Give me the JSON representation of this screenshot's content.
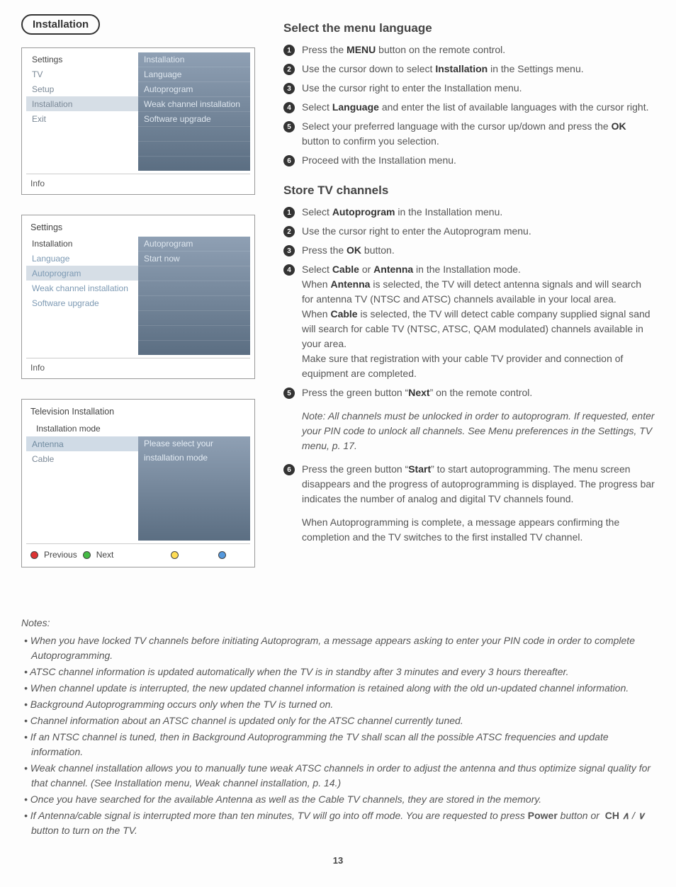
{
  "page_number": "13",
  "tag_label": "Installation",
  "colors": {
    "gradient_top": "#8fa0b4",
    "gradient_bottom": "#5b6e82",
    "text_body": "#555555",
    "text_heading": "#444444",
    "badge_bg": "#333333",
    "dot_red": "#dd3333",
    "dot_green": "#44bb44",
    "dot_yellow": "#ffdd55",
    "dot_blue": "#5599dd"
  },
  "menu1": {
    "left_header": "Settings",
    "right_header": "Installation",
    "left_items": [
      "TV",
      "Setup",
      "Installation",
      "Exit"
    ],
    "left_selected_index": 2,
    "right_items": [
      "Language",
      "Autoprogram",
      "Weak channel installation",
      "Software upgrade"
    ],
    "footer": "Info"
  },
  "menu2": {
    "title": "Settings",
    "left_header": "Installation",
    "right_header": "Autoprogram",
    "left_items": [
      "Language",
      "Autoprogram",
      "Weak channel installation",
      "Software upgrade"
    ],
    "left_selected_index": 1,
    "right_items": [
      "Start now"
    ],
    "footer": "Info"
  },
  "menu3": {
    "title": "Television Installation",
    "subhead": "Installation mode",
    "left_items": [
      "Antenna",
      "Cable"
    ],
    "left_selected_index": 0,
    "right_msg1": "Please select your",
    "right_msg2": "installation mode",
    "buttons": {
      "prev": "Previous",
      "next": "Next"
    }
  },
  "section1": {
    "heading": "Select the menu language",
    "steps": [
      {
        "n": "1",
        "html": "Press the <b>MENU</b> button on the remote control."
      },
      {
        "n": "2",
        "html": "Use the cursor down to select <b>Installation</b> in the Settings menu."
      },
      {
        "n": "3",
        "html": "Use the cursor right to enter the Installation menu."
      },
      {
        "n": "4",
        "html": "Select <b>Language</b> and enter the list of available languages with the cursor right."
      },
      {
        "n": "5",
        "html": "Select your preferred language with the cursor up/down and press the <b>OK</b> button to confirm you selection."
      },
      {
        "n": "6",
        "html": "Proceed with the Installation menu."
      }
    ]
  },
  "section2": {
    "heading": "Store TV channels",
    "steps": [
      {
        "n": "1",
        "html": "Select <b>Autoprogram</b> in the Installation menu."
      },
      {
        "n": "2",
        "html": "Use the cursor right to enter the Autoprogram menu."
      },
      {
        "n": "3",
        "html": "Press the <b>OK</b> button."
      },
      {
        "n": "4",
        "html": "Select <b>Cable</b> or <b>Antenna</b> in the Installation mode.<br>When <b>Antenna</b> is selected, the TV will detect antenna signals and will search for antenna TV (NTSC and ATSC) channels available in your local area.<br>When <b>Cable</b> is selected, the TV will detect cable company supplied signal sand will search for cable TV (NTSC, ATSC, QAM modulated) channels available in your area.<br>Make sure that registration with your cable TV provider and connection of equipment are completed."
      },
      {
        "n": "5",
        "html": "Press the green button “<b>Next</b>” on the remote control."
      }
    ],
    "note_after_5": "Note: All channels must be unlocked in order to autoprogram. If requested, enter your PIN code to unlock all channels. See Menu preferences in the Settings, TV menu, p. 17.",
    "step6": {
      "n": "6",
      "html": "Press the green button “<b>Start</b>” to start autoprogramming. The menu screen disappears and the progress of autoprogramming is displayed. The progress bar indicates the number of analog and digital TV channels found."
    },
    "para_after_6": "When Autoprogramming is complete, a message appears confirming the completion and the TV switches to the first installed TV channel."
  },
  "notes": {
    "title": "Notes:",
    "items": [
      "When you have locked TV channels before initiating Autoprogram, a message appears asking to enter your PIN code in order to complete Autoprogramming.",
      "ATSC channel information is updated automatically when the TV is in standby after 3 minutes and every 3 hours thereafter.",
      "When channel update is interrupted, the new updated channel information is retained along with the old un-updated channel information.",
      "Background Autoprogramming occurs only when the TV is turned on.",
      "Channel information about an ATSC channel is updated only for the ATSC channel currently tuned.",
      "If an NTSC channel is tuned, then in Background Autoprogramming the TV shall scan all the possible ATSC frequencies and update information.",
      "Weak channel installation allows you to manually tune weak ATSC channels in order to adjust the antenna and thus optimize signal quality for that channel. (See Installation menu, Weak channel installation, p. 14.)",
      "Once you have searched for the available Antenna as well as the Cable TV channels, they are stored in the memory.",
      "If Antenna/cable signal is interrupted more than ten minutes, TV will go into off mode. You are requested to press <b style='font-style:normal'>Power</b> button or &nbsp;<b style='font-style:normal'>CH</b> <span class='chev'>∧</span> / <span class='chev'>∨</span> button to turn on the TV."
    ]
  }
}
